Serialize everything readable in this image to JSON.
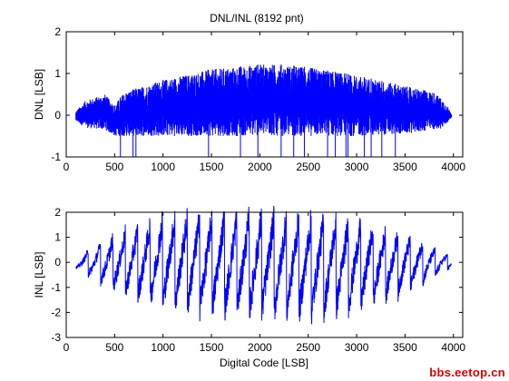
{
  "figure": {
    "watermark": "bbs.eetop.cn",
    "colors": {
      "background": "#ffffff",
      "trace": "#0000ff",
      "axes": "#000000",
      "watermark": "#d40000"
    }
  },
  "chart_data": [
    {
      "type": "line",
      "title": "DNL/INL (8192 pnt)",
      "xlabel": "",
      "ylabel": "DNL [LSB]",
      "xlim": [
        0,
        4096
      ],
      "ylim": [
        -1,
        2
      ],
      "xticks": [
        0,
        500,
        1000,
        1500,
        2000,
        2500,
        3000,
        3500,
        4000
      ],
      "yticks": [
        -1,
        0,
        1,
        2
      ],
      "grid": false,
      "series": [
        {
          "color": "#0000ff",
          "code_range": [
            100,
            3980
          ],
          "envelope": {
            "x": [
              100,
              200,
              400,
              500,
              600,
              800,
              1000,
              1500,
              2000,
              2200,
              2500,
              3000,
              3500,
              3800,
              3900,
              3980
            ],
            "upper": [
              0.1,
              0.35,
              0.5,
              0.25,
              0.55,
              0.7,
              0.85,
              1.1,
              1.22,
              1.22,
              1.15,
              0.95,
              0.7,
              0.55,
              0.35,
              0.05
            ],
            "lower": [
              -0.15,
              -0.3,
              -0.35,
              -0.5,
              -0.5,
              -0.5,
              -0.5,
              -0.5,
              -0.5,
              -0.5,
              -0.5,
              -0.5,
              -0.45,
              -0.35,
              -0.3,
              -0.05
            ]
          },
          "missing_code_spikes": [
            560,
            690,
            720,
            1470,
            1800,
            1980,
            2220,
            2350,
            2460,
            2700,
            2780,
            2890,
            2910,
            3080,
            3150,
            3260,
            3400
          ]
        }
      ]
    },
    {
      "type": "line",
      "title": "",
      "xlabel": "Digital Code [LSB]",
      "ylabel": "INL [LSB]",
      "xlim": [
        0,
        4096
      ],
      "ylim": [
        -3,
        2
      ],
      "xticks": [
        0,
        500,
        1000,
        1500,
        2000,
        2500,
        3000,
        3500,
        4000
      ],
      "yticks": [
        -3,
        -2,
        -1,
        0,
        1,
        2
      ],
      "grid": false,
      "series": [
        {
          "color": "#0000ff",
          "code_range": [
            100,
            3980
          ],
          "sawtooth_period_codes": 128,
          "amplitude_envelope": {
            "x": [
              100,
              500,
              1000,
              1500,
              2000,
              2500,
              3000,
              3500,
              3980
            ],
            "upper": [
              0.2,
              1.0,
              1.7,
              1.8,
              1.8,
              1.7,
              1.5,
              1.0,
              0.2
            ],
            "lower": [
              -0.2,
              -1.0,
              -1.6,
              -1.8,
              -1.9,
              -2.0,
              -1.7,
              -1.1,
              -0.2
            ]
          }
        }
      ]
    }
  ]
}
